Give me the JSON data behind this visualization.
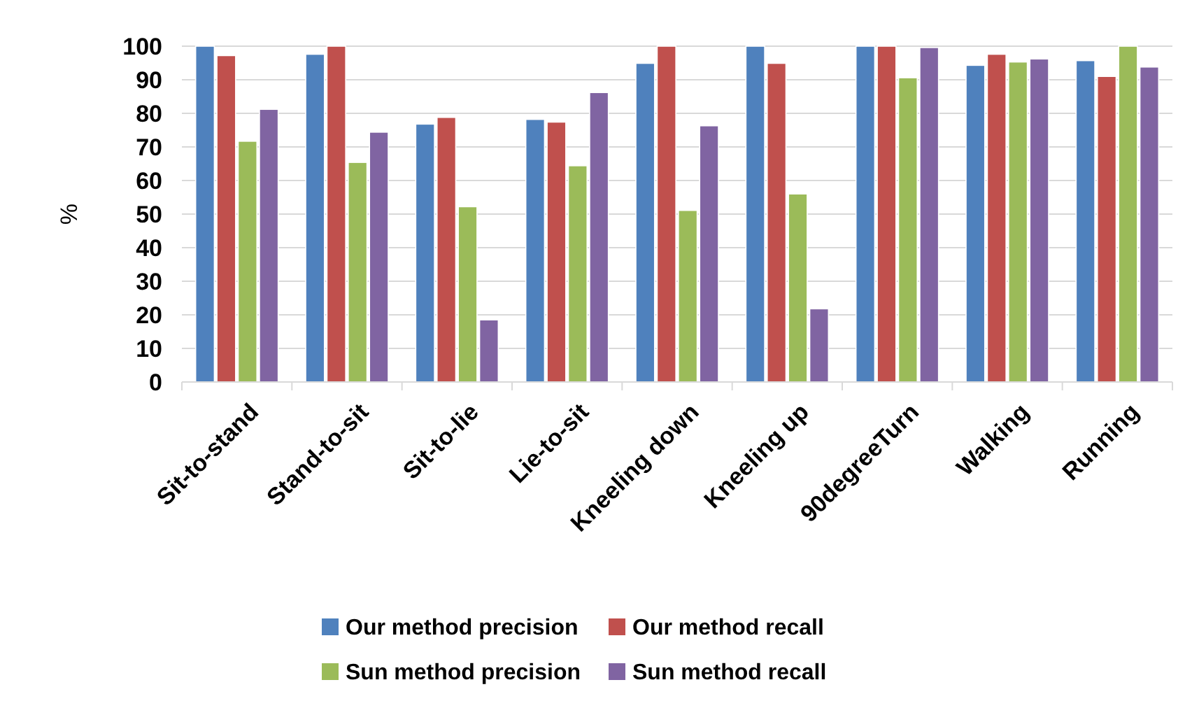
{
  "chart_data": {
    "type": "bar",
    "ylabel": "%",
    "categories": [
      "Sit-to-stand",
      "Stand-to-sit",
      "Sit-to-lie",
      "Lie-to-sit",
      "Kneeling down",
      "Kneeling up",
      "90degreeTurn",
      "Walking",
      "Running"
    ],
    "series": [
      {
        "name": "Our method precision",
        "color": "#4f81bd",
        "values": [
          100,
          97.6,
          76.8,
          78.2,
          94.9,
          100,
          100,
          94.3,
          95.7
        ]
      },
      {
        "name": "Our method recall",
        "color": "#c0504d",
        "values": [
          97.2,
          100,
          78.8,
          77.4,
          100,
          94.9,
          100,
          97.6,
          91
        ]
      },
      {
        "name": "Sun method precision",
        "color": "#9bbb59",
        "values": [
          71.7,
          65.4,
          52.2,
          64.4,
          51.1,
          56,
          90.6,
          95.3,
          100
        ]
      },
      {
        "name": "Sun method recall",
        "color": "#8064a2",
        "values": [
          81.2,
          74.4,
          18.5,
          86.2,
          76.3,
          21.8,
          99.6,
          96.2,
          93.8
        ]
      }
    ],
    "ylim": [
      0,
      100
    ],
    "yticks": [
      0,
      10,
      20,
      30,
      40,
      50,
      60,
      70,
      80,
      90,
      100
    ],
    "grid": "y",
    "legend": "bottom"
  }
}
